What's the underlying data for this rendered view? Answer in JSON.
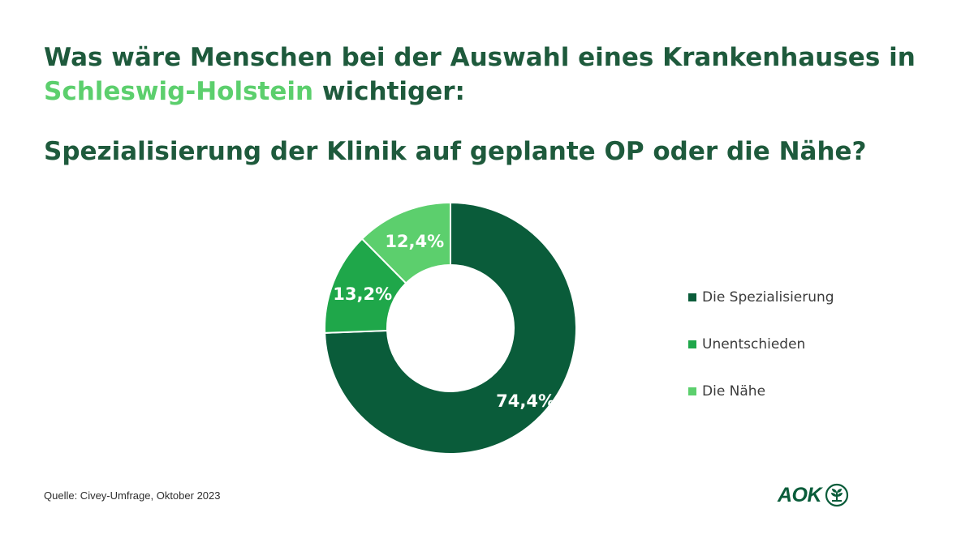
{
  "header": {
    "title_part1": "Was wäre Menschen bei der Auswahl eines Krankenhauses in ",
    "title_highlight": "Schleswig-Holstein",
    "title_part2": " wichtiger:",
    "subtitle": "Spezialisierung der Klinik auf geplante OP oder die Nähe?"
  },
  "chart_data": {
    "type": "pie",
    "variant": "donut",
    "categories": [
      "Die Spezialisierung",
      "Unentschieden",
      "Die Nähe"
    ],
    "values": [
      74.4,
      13.2,
      12.4
    ],
    "data_labels": [
      "74,4%",
      "13,2%",
      "12,4%"
    ],
    "colors": [
      "#0a5c3a",
      "#1fa74a",
      "#5ccf6d"
    ],
    "legend_position": "right",
    "start_angle": "top, clockwise"
  },
  "footer": {
    "source": "Quelle: Civey-Umfrage,  Oktober 2023",
    "logo_text": "AOK"
  },
  "colors": {
    "title": "#1e5a3c",
    "highlight": "#5ccf6d",
    "brand": "#0a5c3a"
  }
}
